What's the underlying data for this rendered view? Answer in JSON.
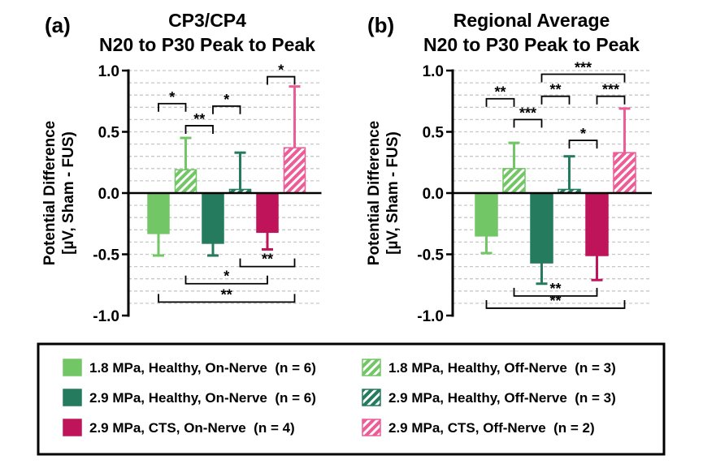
{
  "chart_data": [
    {
      "type": "bar",
      "panel_label": "(a)",
      "title_lines": [
        "CP3/CP4",
        "N20 to P30 Peak to Peak"
      ],
      "ylabel_lines": [
        "Potential Difference",
        "[µV, Sham - FUS)"
      ],
      "ylim": [
        -1.0,
        1.0
      ],
      "yticks": [
        -1.0,
        -0.5,
        0.0,
        0.5,
        1.0
      ],
      "ytick_labels": [
        "-1.0",
        "-0.5",
        "0.0",
        "0.5",
        "1.0"
      ],
      "grid": "dashed-horizontal",
      "series": [
        {
          "name": "1.8 MPa, Healthy, On-Nerve (n = 6)",
          "value": -0.33,
          "error": 0.18
        },
        {
          "name": "1.8 MPa, Healthy, Off-Nerve (n = 3)",
          "value": 0.19,
          "error": 0.26
        },
        {
          "name": "2.9 MPa, Healthy, On-Nerve (n = 6)",
          "value": -0.41,
          "error": 0.1
        },
        {
          "name": "2.9 MPa, Healthy, Off-Nerve (n = 3)",
          "value": 0.03,
          "error": 0.3
        },
        {
          "name": "2.9 MPa, CTS, On-Nerve (n = 4)",
          "value": -0.32,
          "error": 0.14
        },
        {
          "name": "2.9 MPa, CTS, Off-Nerve (n = 2)",
          "value": 0.37,
          "error": 0.5
        }
      ],
      "significance": [
        {
          "from": 0,
          "to": 1,
          "label": "*",
          "side": "top",
          "y": 0.73
        },
        {
          "from": 1,
          "to": 2,
          "label": "**",
          "side": "top",
          "y": 0.55
        },
        {
          "from": 2,
          "to": 3,
          "label": "*",
          "side": "top",
          "y": 0.71
        },
        {
          "from": 4,
          "to": 5,
          "label": "*",
          "side": "top",
          "y": 0.95
        },
        {
          "from": 3,
          "to": 5,
          "label": "**",
          "side": "bottom",
          "y": -0.6
        },
        {
          "from": 1,
          "to": 4,
          "label": "*",
          "side": "bottom",
          "y": -0.74
        },
        {
          "from": 0,
          "to": 5,
          "label": "**",
          "side": "bottom",
          "y": -0.89
        }
      ]
    },
    {
      "type": "bar",
      "panel_label": "(b)",
      "title_lines": [
        "Regional Average",
        "N20 to P30 Peak to Peak"
      ],
      "ylabel_lines": [
        "Potential Difference",
        "[µV, Sham - FUS)"
      ],
      "ylim": [
        -1.0,
        1.0
      ],
      "yticks": [
        -1.0,
        -0.5,
        0.0,
        0.5,
        1.0
      ],
      "ytick_labels": [
        "-1.0",
        "-0.5",
        "0.0",
        "0.5",
        "1.0"
      ],
      "grid": "dashed-horizontal",
      "series": [
        {
          "name": "1.8 MPa, Healthy, On-Nerve (n = 6)",
          "value": -0.35,
          "error": 0.14
        },
        {
          "name": "1.8 MPa, Healthy, Off-Nerve (n = 3)",
          "value": 0.2,
          "error": 0.21
        },
        {
          "name": "2.9 MPa, Healthy, On-Nerve (n = 6)",
          "value": -0.57,
          "error": 0.17
        },
        {
          "name": "2.9 MPa, Healthy, Off-Nerve (n = 3)",
          "value": 0.03,
          "error": 0.27
        },
        {
          "name": "2.9 MPa, CTS, On-Nerve (n = 4)",
          "value": -0.51,
          "error": 0.2
        },
        {
          "name": "2.9 MPa, CTS, Off-Nerve (n = 2)",
          "value": 0.33,
          "error": 0.36
        }
      ],
      "significance": [
        {
          "from": 0,
          "to": 1,
          "label": "**",
          "side": "top",
          "y": 0.77
        },
        {
          "from": 1,
          "to": 2,
          "label": "***",
          "side": "top",
          "y": 0.6
        },
        {
          "from": 2,
          "to": 3,
          "label": "**",
          "side": "top",
          "y": 0.79
        },
        {
          "from": 3,
          "to": 4,
          "label": "*",
          "side": "top",
          "y": 0.43
        },
        {
          "from": 4,
          "to": 5,
          "label": "***",
          "side": "top",
          "y": 0.79
        },
        {
          "from": 2,
          "to": 5,
          "label": "***",
          "side": "top",
          "y": 0.97
        },
        {
          "from": 1,
          "to": 4,
          "label": "**",
          "side": "bottom",
          "y": -0.84
        },
        {
          "from": 0,
          "to": 5,
          "label": "**",
          "side": "bottom",
          "y": -0.94
        }
      ]
    }
  ],
  "legend": {
    "placement": "bottom",
    "items": [
      {
        "label": "1.8 MPa, Healthy, On-Nerve  (n = 6)",
        "color": "#72c665",
        "hatched": false
      },
      {
        "label": "1.8 MPa, Healthy, Off-Nerve  (n = 3)",
        "color": "#72c665",
        "hatched": true
      },
      {
        "label": "2.9 MPa, Healthy, On-Nerve  (n = 6)",
        "color": "#247b5e",
        "hatched": false
      },
      {
        "label": "2.9 MPa, Healthy, Off-Nerve  (n = 3)",
        "color": "#247b5e",
        "hatched": true
      },
      {
        "label": "2.9 MPa, CTS, On-Nerve  (n = 4)",
        "color": "#c0145a",
        "hatched": false
      },
      {
        "label": "2.9 MPa, CTS, Off-Nerve  (n = 2)",
        "color": "#ee5c98",
        "hatched": true
      }
    ]
  },
  "colors": {
    "light_green": "#72c665",
    "dark_green": "#247b5e",
    "crimson": "#c0145a",
    "pink": "#ee5c98",
    "grid": "#c8c8c8"
  }
}
